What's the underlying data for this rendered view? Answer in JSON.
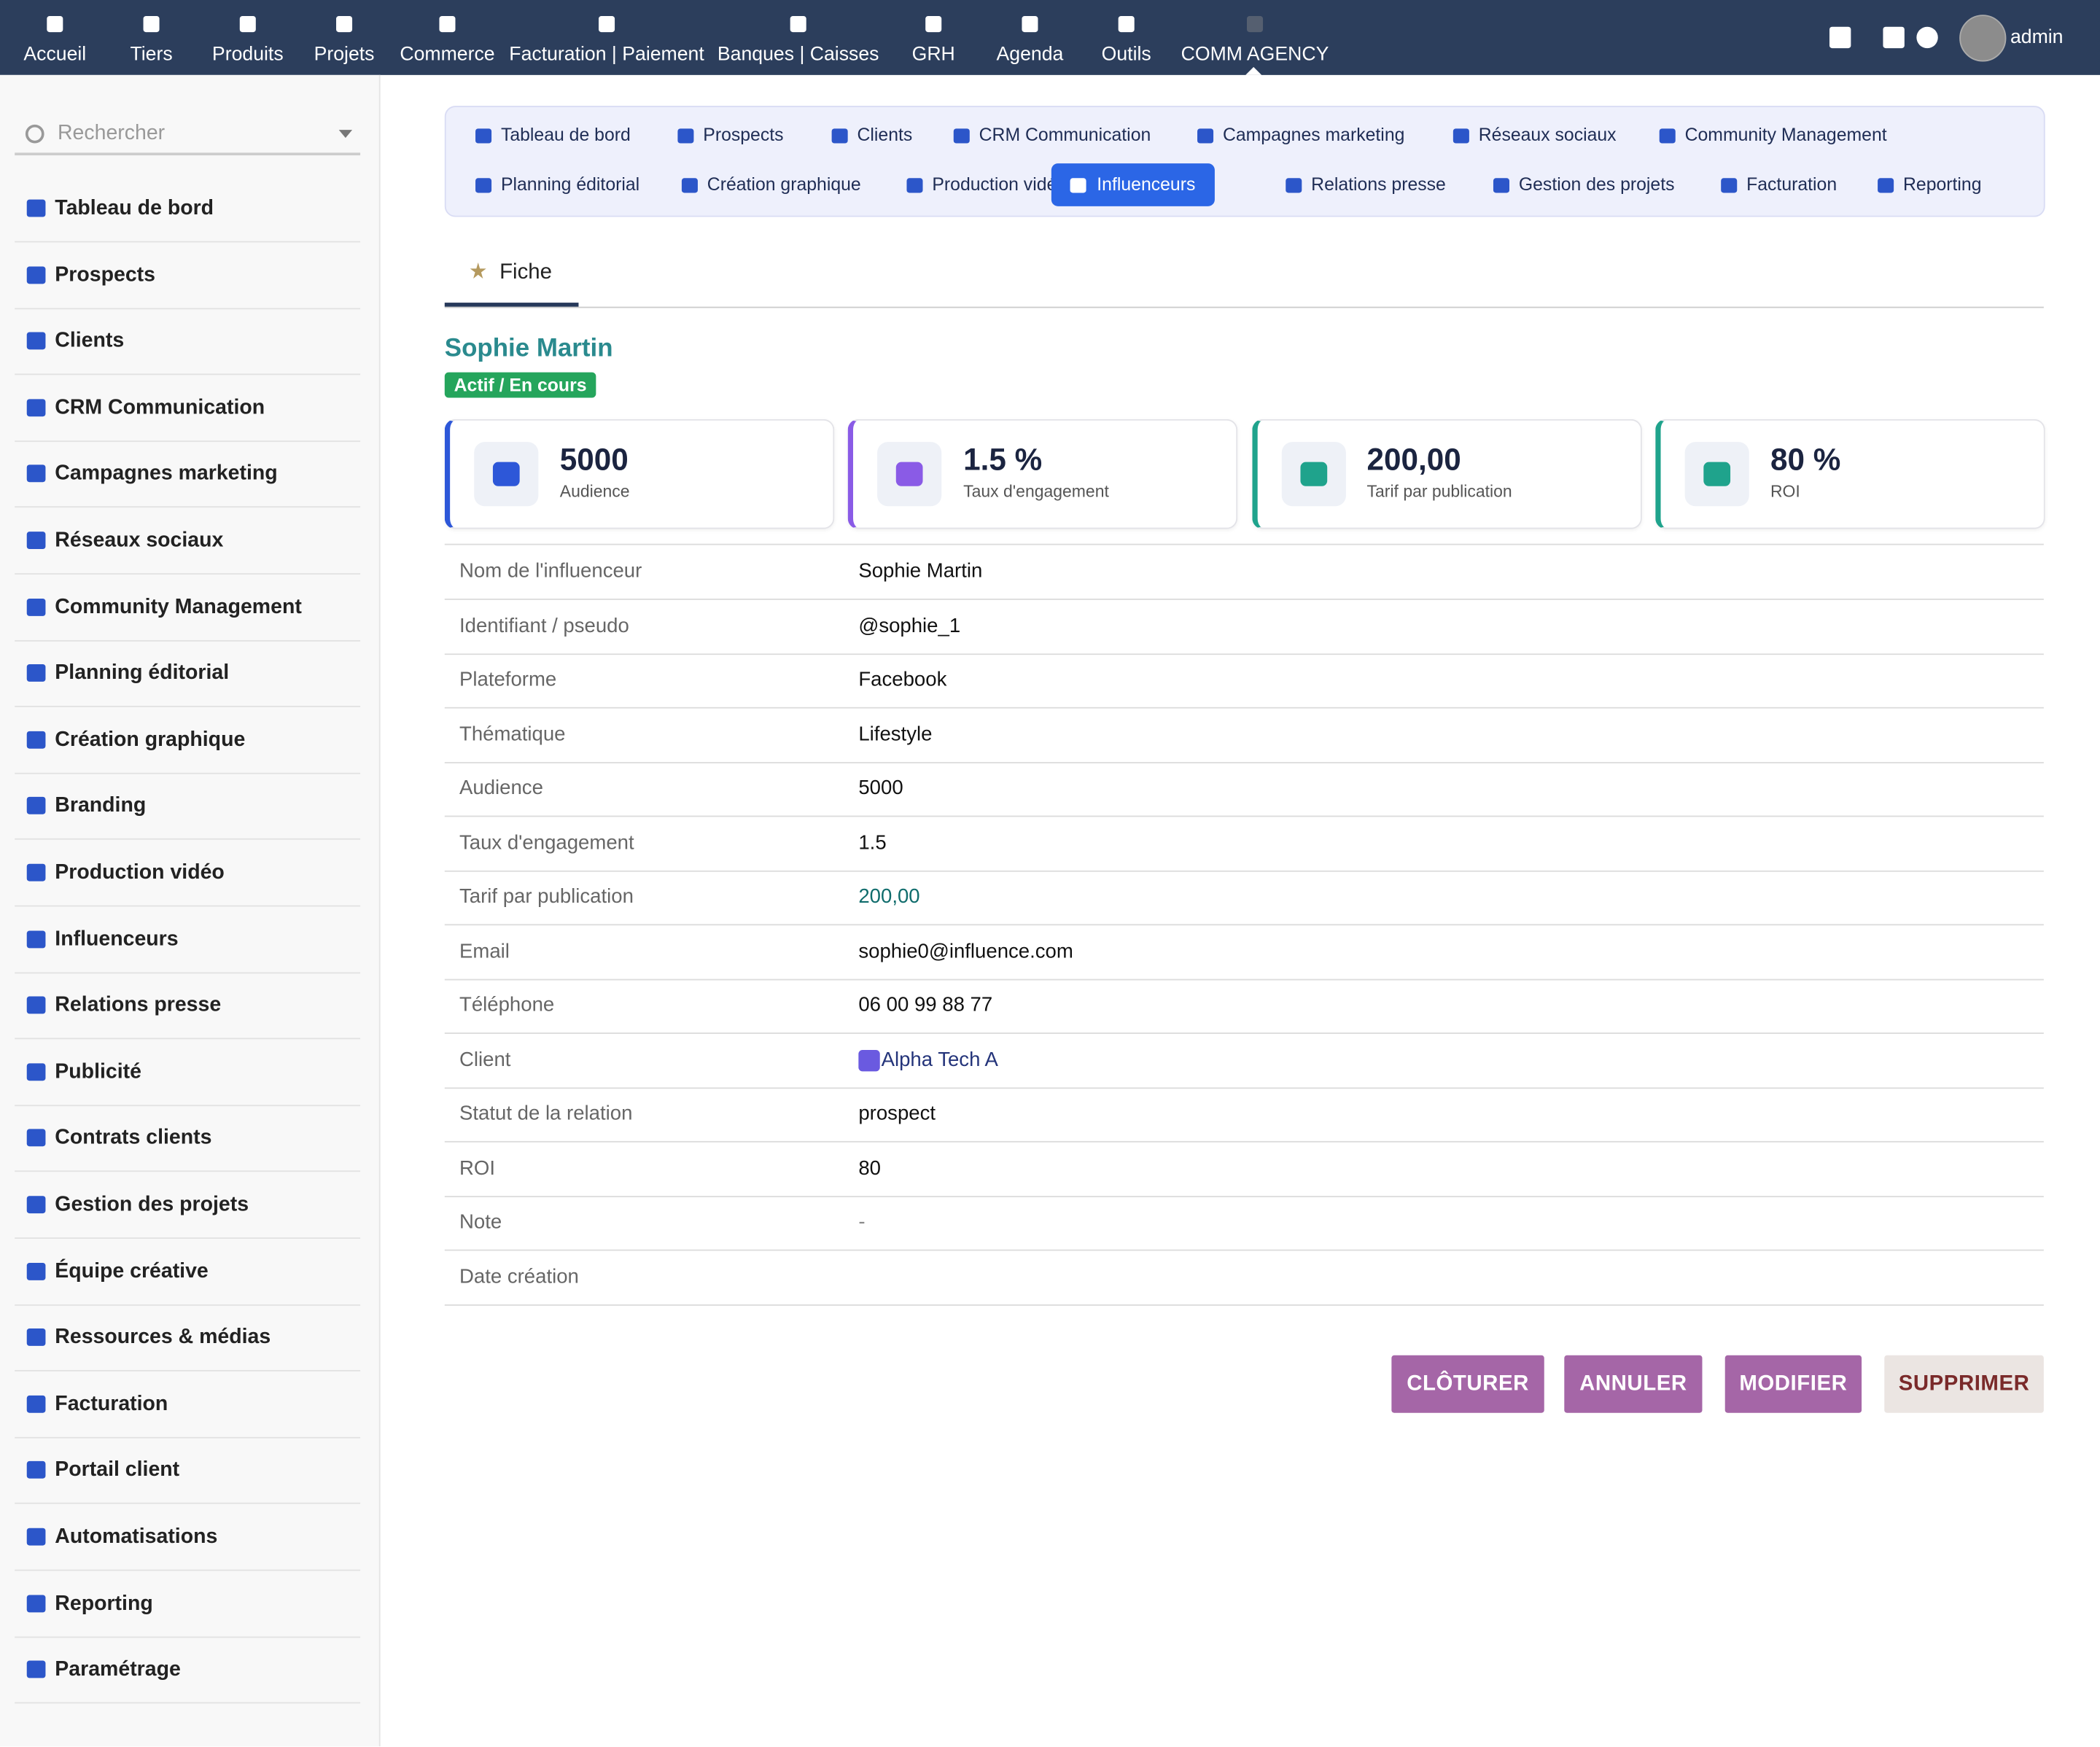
{
  "topnav": {
    "items": [
      "Accueil",
      "Tiers",
      "Produits",
      "Projets",
      "Commerce",
      "Facturation | Paiement",
      "Banques | Caisses",
      "GRH",
      "Agenda",
      "Outils",
      "COMM AGENCY"
    ],
    "user": "admin"
  },
  "sidebar": {
    "search": "Rechercher",
    "items": [
      "Tableau de bord",
      "Prospects",
      "Clients",
      "CRM Communication",
      "Campagnes marketing",
      "Réseaux sociaux",
      "Community Management",
      "Planning éditorial",
      "Création graphique",
      "Branding",
      "Production vidéo",
      "Influenceurs",
      "Relations presse",
      "Publicité",
      "Contrats clients",
      "Gestion des projets",
      "Équipe créative",
      "Ressources & médias",
      "Facturation",
      "Portail client",
      "Automatisations",
      "Reporting",
      "Paramétrage"
    ]
  },
  "subnav": {
    "rows": [
      [
        "Tableau de bord",
        "Prospects",
        "Clients",
        "CRM Communication",
        "Campagnes marketing",
        "Réseaux sociaux",
        "Community Management"
      ],
      [
        "Planning éditorial",
        "Création graphique",
        "Production vidéo",
        "Influenceurs",
        "Relations presse",
        "Gestion des projets",
        "Facturation",
        "Reporting"
      ]
    ]
  },
  "tab": "Fiche",
  "header": {
    "name": "Sophie Martin",
    "status": "Actif / En cours"
  },
  "kpis": [
    {
      "value": "5000",
      "label": "Audience"
    },
    {
      "value": "1.5 %",
      "label": "Taux d'engagement"
    },
    {
      "value": "200,00",
      "label": "Tarif par publication"
    },
    {
      "value": "80 %",
      "label": "ROI"
    }
  ],
  "table": {
    "rows": [
      [
        "Nom de l'influenceur",
        "Sophie Martin"
      ],
      [
        "Identifiant / pseudo",
        "@sophie_1"
      ],
      [
        "Plateforme",
        "Facebook"
      ],
      [
        "Thématique",
        "Lifestyle"
      ],
      [
        "Audience",
        "5000"
      ],
      [
        "Taux d'engagement",
        "1.5"
      ],
      [
        "Tarif par publication",
        "200,00"
      ],
      [
        "Email",
        "sophie0@influence.com"
      ],
      [
        "Téléphone",
        "06 00 99 88 77"
      ],
      [
        "Client",
        "Alpha Tech A"
      ],
      [
        "Statut de la relation",
        "prospect"
      ],
      [
        "ROI",
        "80"
      ],
      [
        "Note",
        "-"
      ],
      [
        "Date création",
        ""
      ]
    ]
  },
  "buttons": [
    "CLÔTURER",
    "ANNULER",
    "MODIFIER",
    "SUPPRIMER"
  ]
}
